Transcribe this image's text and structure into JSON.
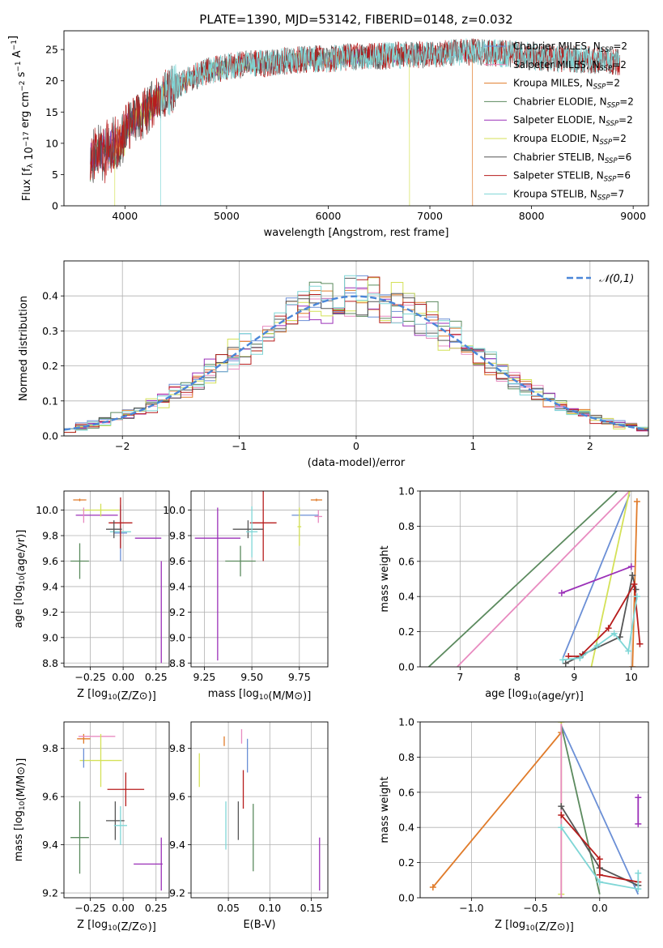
{
  "figure": {
    "title": "PLATE=1390, MJD=53142, FIBERID=0148, z=0.032"
  },
  "colors": {
    "Chabrier MILES": "#6b8fd6",
    "Salpeter MILES": "#e88bc0",
    "Kroupa MILES": "#e07b2a",
    "Chabrier ELODIE": "#5b8a5e",
    "Salpeter ELODIE": "#9b30b8",
    "Kroupa ELODIE": "#d4e157",
    "Chabrier STELIB": "#555555",
    "Salpeter STELIB": "#b71c1c",
    "Kroupa STELIB": "#7fd6d6"
  },
  "chart_data": [
    {
      "id": "spectrum",
      "type": "line",
      "xlabel": "wavelength [Angstrom, rest frame]",
      "ylabel": "Flux [f_λ 10^-17 erg cm^-2 s^-1 A^-1]",
      "xlim": [
        3400,
        9150
      ],
      "ylim": [
        0,
        28
      ],
      "xticks": [
        4000,
        5000,
        6000,
        7000,
        8000,
        9000
      ],
      "yticks": [
        0,
        5,
        10,
        15,
        20,
        25
      ],
      "legend": [
        {
          "name": "Chabrier MILES",
          "sub": "SSP",
          "n": "=2"
        },
        {
          "name": "Salpeter MILES",
          "sub": "SSP",
          "n": "=2"
        },
        {
          "name": "Kroupa MILES",
          "sub": "SSP",
          "n": "=2"
        },
        {
          "name": "Chabrier ELODIE",
          "sub": "SSP",
          "n": "=2"
        },
        {
          "name": "Salpeter ELODIE",
          "sub": "SSP",
          "n": "=2"
        },
        {
          "name": "Kroupa ELODIE",
          "sub": "SSP",
          "n": "=2"
        },
        {
          "name": "Chabrier STELIB",
          "sub": "SSP",
          "n": "=6"
        },
        {
          "name": "Salpeter STELIB",
          "sub": "SSP",
          "n": "=6"
        },
        {
          "name": "Kroupa STELIB",
          "sub": "SSP",
          "n": "=7"
        }
      ],
      "legend_prefix": " N",
      "continuum": [
        [
          3660,
          9
        ],
        [
          3750,
          10
        ],
        [
          3900,
          11
        ],
        [
          4000,
          12.5
        ],
        [
          4200,
          15
        ],
        [
          4400,
          18
        ],
        [
          4600,
          20
        ],
        [
          4800,
          21.5
        ],
        [
          5000,
          22.2
        ],
        [
          5200,
          22.7
        ],
        [
          5400,
          22.8
        ],
        [
          5600,
          23.2
        ],
        [
          5800,
          23.5
        ],
        [
          6000,
          23.5
        ],
        [
          6200,
          23.8
        ],
        [
          6400,
          23.9
        ],
        [
          6600,
          24
        ],
        [
          6800,
          24.1
        ],
        [
          7000,
          24.2
        ],
        [
          7200,
          24.5
        ],
        [
          7400,
          24.6
        ],
        [
          7600,
          24.4
        ],
        [
          7800,
          24.3
        ],
        [
          8000,
          24
        ],
        [
          8200,
          23.5
        ],
        [
          8400,
          23.5
        ],
        [
          8600,
          23.3
        ],
        [
          8800,
          23.2
        ],
        [
          8870,
          23
        ]
      ],
      "series_ranges": {
        "Chabrier MILES": [
          3660,
          7400
        ],
        "Salpeter MILES": [
          3660,
          7400
        ],
        "Kroupa MILES": [
          3660,
          7420
        ],
        "Chabrier ELODIE": [
          3660,
          6800
        ],
        "Salpeter ELODIE": [
          3660,
          6800
        ],
        "Kroupa ELODIE": [
          3900,
          6800
        ],
        "Chabrier STELIB": [
          3660,
          8870
        ],
        "Salpeter STELIB": [
          3660,
          8870
        ],
        "Kroupa STELIB": [
          4350,
          8870
        ]
      }
    },
    {
      "id": "residuals",
      "type": "line",
      "xlabel": "(data-model)/error",
      "ylabel": "Normed distribution",
      "xlim": [
        -2.5,
        2.5
      ],
      "ylim": [
        0,
        0.5
      ],
      "xticks": [
        -2,
        -1,
        0,
        1,
        2
      ],
      "yticks": [
        0.0,
        0.1,
        0.2,
        0.3,
        0.4
      ],
      "grid": true,
      "legend": "𝒩(0,1)",
      "gaussian": {
        "mean": 0,
        "sigma": 1,
        "color": "#4a86d8"
      },
      "bins": 50
    },
    {
      "id": "age_vs_Z",
      "type": "scatter",
      "xlabel": "Z [log10(Z/Z⊙)]",
      "ylabel": "age  [log10(age/yr)]",
      "xlim": [
        -0.45,
        0.35
      ],
      "ylim": [
        8.77,
        10.15
      ],
      "xticks": [
        -0.25,
        0.0,
        0.25
      ],
      "yticks": [
        8.8,
        9.0,
        9.2,
        9.4,
        9.6,
        9.8,
        10.0
      ],
      "grid": true,
      "points": [
        {
          "s": "Kroupa MILES",
          "x": -0.33,
          "y": 10.08,
          "ex": 0.05,
          "ey": 0.01
        },
        {
          "s": "Salpeter ELODIE",
          "x": -0.2,
          "y": 9.96,
          "ex": 0.16,
          "ey": 0.0
        },
        {
          "s": "Kroupa ELODIE",
          "x": -0.17,
          "y": 10.0,
          "ex": 0.14,
          "ey": 0.05
        },
        {
          "s": "Kroupa STELIB",
          "x": -0.02,
          "y": 9.83,
          "ex": 0.08,
          "ey": 0.05
        },
        {
          "s": "Chabrier MILES",
          "x": -0.02,
          "y": 9.82,
          "ex": 0.05,
          "ey": 0.22
        },
        {
          "s": "Salpeter STELIB",
          "x": -0.02,
          "y": 9.9,
          "ex": 0.09,
          "ey": 0.2
        },
        {
          "s": "Chabrier STELIB",
          "x": -0.07,
          "y": 9.85,
          "ex": 0.06,
          "ey": 0.07
        },
        {
          "s": "Chabrier ELODIE",
          "x": -0.33,
          "y": 9.6,
          "ex": 0.07,
          "ey": 0.14
        },
        {
          "s": "Salpeter ELODIE",
          "x": 0.29,
          "y": 9.2,
          "ex": 0.0,
          "ey": 0.4
        },
        {
          "s": "Salpeter ELODIE",
          "x": 0.19,
          "y": 9.78,
          "ex": 0.1,
          "ey": 0.0
        },
        {
          "s": "Salpeter MILES",
          "x": -0.3,
          "y": 9.96,
          "ex": 0.0,
          "ey": 0.06
        }
      ]
    },
    {
      "id": "age_vs_mass",
      "type": "scatter",
      "xlabel": "mass [log10(M/M⊙)]",
      "ylabel": "",
      "xlim": [
        9.18,
        9.9
      ],
      "ylim": [
        8.77,
        10.15
      ],
      "xticks": [
        9.25,
        9.5,
        9.75
      ],
      "yticks": [
        8.8,
        9.0,
        9.2,
        9.4,
        9.6,
        9.8,
        10.0
      ],
      "grid": true,
      "points": [
        {
          "s": "Kroupa MILES",
          "x": 9.84,
          "y": 10.08,
          "ex": 0.03,
          "ey": 0.01
        },
        {
          "s": "Salpeter MILES",
          "x": 9.85,
          "y": 9.95,
          "ex": 0.02,
          "ey": 0.05
        },
        {
          "s": "Chabrier MILES",
          "x": 9.78,
          "y": 9.96,
          "ex": 0.07,
          "ey": 0.0
        },
        {
          "s": "Kroupa ELODIE",
          "x": 9.75,
          "y": 9.87,
          "ex": 0.01,
          "ey": 0.15
        },
        {
          "s": "Salpeter STELIB",
          "x": 9.56,
          "y": 9.9,
          "ex": 0.07,
          "ey": 0.3
        },
        {
          "s": "Chabrier STELIB",
          "x": 9.48,
          "y": 9.85,
          "ex": 0.08,
          "ey": 0.07
        },
        {
          "s": "Kroupa STELIB",
          "x": 9.5,
          "y": 9.83,
          "ex": 0.03,
          "ey": 0.2
        },
        {
          "s": "Chabrier ELODIE",
          "x": 9.44,
          "y": 9.6,
          "ex": 0.08,
          "ey": 0.12
        },
        {
          "s": "Salpeter ELODIE",
          "x": 9.32,
          "y": 9.78,
          "ex": 0.12,
          "ey": 0.0
        },
        {
          "s": "Salpeter ELODIE",
          "x": 9.32,
          "y": 9.42,
          "ex": 0.0,
          "ey": 0.6
        }
      ]
    },
    {
      "id": "weight_vs_age",
      "type": "line",
      "xlabel": "age  [log10(age/yr)]",
      "ylabel": "mass weight",
      "xlim": [
        6.3,
        10.3
      ],
      "ylim": [
        0,
        1
      ],
      "xticks": [
        7,
        8,
        9,
        10
      ],
      "yticks": [
        0.0,
        0.2,
        0.4,
        0.6,
        0.8,
        1.0
      ],
      "grid": true,
      "series": [
        {
          "name": "Chabrier ELODIE",
          "points": [
            [
              6.45,
              0.0
            ],
            [
              9.75,
              1.0
            ]
          ],
          "marker": false
        },
        {
          "name": "Salpeter MILES",
          "points": [
            [
              6.95,
              0.0
            ],
            [
              9.97,
              1.0
            ]
          ],
          "marker": false
        },
        {
          "name": "Chabrier MILES",
          "points": [
            [
              8.8,
              0.05
            ],
            [
              9.97,
              0.98
            ]
          ],
          "marker": false
        },
        {
          "name": "Kroupa ELODIE",
          "points": [
            [
              9.3,
              0.0
            ],
            [
              9.97,
              1.0
            ]
          ],
          "marker": false
        },
        {
          "name": "Kroupa MILES",
          "points": [
            [
              10.02,
              0.0
            ],
            [
              10.1,
              0.94
            ]
          ],
          "marker": true
        },
        {
          "name": "Salpeter ELODIE",
          "points": [
            [
              8.78,
              0.42
            ],
            [
              10.0,
              0.57
            ]
          ],
          "marker": true
        },
        {
          "name": "Chabrier STELIB",
          "points": [
            [
              8.85,
              0.02
            ],
            [
              9.15,
              0.07
            ],
            [
              9.8,
              0.17
            ],
            [
              10.02,
              0.52
            ],
            [
              10.08,
              0.44
            ]
          ],
          "marker": true
        },
        {
          "name": "Salpeter STELIB",
          "points": [
            [
              8.9,
              0.06
            ],
            [
              9.1,
              0.06
            ],
            [
              9.6,
              0.22
            ],
            [
              10.05,
              0.47
            ],
            [
              10.15,
              0.13
            ]
          ],
          "marker": true
        },
        {
          "name": "Kroupa STELIB",
          "points": [
            [
              8.8,
              0.04
            ],
            [
              9.1,
              0.05
            ],
            [
              9.4,
              0.12
            ],
            [
              9.7,
              0.19
            ],
            [
              9.95,
              0.09
            ],
            [
              10.1,
              0.4
            ]
          ],
          "marker": true
        }
      ]
    },
    {
      "id": "mass_vs_Z",
      "type": "scatter",
      "xlabel": "Z [log10(Z/Z⊙)]",
      "ylabel": "mass [log10(M/M⊙)]",
      "xlim": [
        -0.45,
        0.35
      ],
      "ylim": [
        9.18,
        9.91
      ],
      "xticks": [
        -0.25,
        0.0,
        0.25
      ],
      "yticks": [
        9.2,
        9.4,
        9.6,
        9.8
      ],
      "grid": true,
      "points": [
        {
          "s": "Kroupa MILES",
          "x": -0.3,
          "y": 9.84,
          "ex": 0.05,
          "ey": 0.02
        },
        {
          "s": "Salpeter MILES",
          "x": -0.2,
          "y": 9.85,
          "ex": 0.14,
          "ey": 0.0
        },
        {
          "s": "Kroupa ELODIE",
          "x": -0.17,
          "y": 9.75,
          "ex": 0.16,
          "ey": 0.11
        },
        {
          "s": "Salpeter STELIB",
          "x": 0.02,
          "y": 9.63,
          "ex": 0.14,
          "ey": 0.07
        },
        {
          "s": "Chabrier STELIB",
          "x": -0.06,
          "y": 9.5,
          "ex": 0.07,
          "ey": 0.08
        },
        {
          "s": "Kroupa STELIB",
          "x": -0.02,
          "y": 9.48,
          "ex": 0.05,
          "ey": 0.08
        },
        {
          "s": "Chabrier ELODIE",
          "x": -0.33,
          "y": 9.43,
          "ex": 0.07,
          "ey": 0.15
        },
        {
          "s": "Salpeter ELODIE",
          "x": 0.19,
          "y": 9.32,
          "ex": 0.11,
          "ey": 0.0
        },
        {
          "s": "Salpeter ELODIE",
          "x": 0.29,
          "y": 9.32,
          "ex": 0.0,
          "ey": 0.11
        },
        {
          "s": "Chabrier MILES",
          "x": -0.3,
          "y": 9.76,
          "ex": 0.0,
          "ey": 0.04
        }
      ]
    },
    {
      "id": "mass_vs_EBV",
      "type": "scatter",
      "xlabel": "E(B-V)",
      "ylabel": "",
      "xlim": [
        0.005,
        0.17
      ],
      "ylim": [
        9.18,
        9.91
      ],
      "xticks": [
        0.05,
        0.1,
        0.15
      ],
      "tick_labels": [
        "0.05",
        "0.10",
        "0.15"
      ],
      "yticks": [
        9.2,
        9.4,
        9.6,
        9.8
      ],
      "grid": true,
      "points": [
        {
          "s": "Kroupa ELODIE",
          "x": 0.015,
          "y": 9.71,
          "ex": 0.0,
          "ey": 0.07
        },
        {
          "s": "Kroupa MILES",
          "x": 0.045,
          "y": 9.83,
          "ex": 0.0,
          "ey": 0.02
        },
        {
          "s": "Salpeter MILES",
          "x": 0.066,
          "y": 9.85,
          "ex": 0.0,
          "ey": 0.03
        },
        {
          "s": "Chabrier MILES",
          "x": 0.073,
          "y": 9.77,
          "ex": 0.0,
          "ey": 0.07
        },
        {
          "s": "Salpeter STELIB",
          "x": 0.068,
          "y": 9.63,
          "ex": 0.0,
          "ey": 0.08
        },
        {
          "s": "Chabrier STELIB",
          "x": 0.062,
          "y": 9.5,
          "ex": 0.0,
          "ey": 0.08
        },
        {
          "s": "Kroupa STELIB",
          "x": 0.047,
          "y": 9.48,
          "ex": 0.0,
          "ey": 0.1
        },
        {
          "s": "Chabrier ELODIE",
          "x": 0.08,
          "y": 9.43,
          "ex": 0.0,
          "ey": 0.14
        },
        {
          "s": "Salpeter ELODIE",
          "x": 0.16,
          "y": 9.32,
          "ex": 0.0,
          "ey": 0.11
        }
      ]
    },
    {
      "id": "weight_vs_Z",
      "type": "line",
      "xlabel": "Z [log10(Z/Z⊙)]",
      "ylabel": "mass weight",
      "xlim": [
        -1.4,
        0.38
      ],
      "ylim": [
        0,
        1
      ],
      "xticks": [
        -1.0,
        -0.5,
        0.0
      ],
      "yticks": [
        0.0,
        0.2,
        0.4,
        0.6,
        0.8,
        1.0
      ],
      "grid": true,
      "series": [
        {
          "name": "Kroupa MILES",
          "points": [
            [
              -1.3,
              0.06
            ],
            [
              -0.3,
              0.94
            ]
          ],
          "marker": true
        },
        {
          "name": "Chabrier MILES",
          "points": [
            [
              -0.3,
              0.98
            ],
            [
              0.3,
              0.02
            ]
          ],
          "marker": false
        },
        {
          "name": "Chabrier ELODIE",
          "points": [
            [
              -0.3,
              0.98
            ],
            [
              0.0,
              0.02
            ]
          ],
          "marker": false
        },
        {
          "name": "Kroupa ELODIE",
          "points": [
            [
              -0.3,
              1.0
            ],
            [
              -0.3,
              0.02
            ]
          ],
          "marker": true
        },
        {
          "name": "Salpeter MILES",
          "points": [
            [
              -0.3,
              0.99
            ],
            [
              -0.3,
              0.0
            ]
          ],
          "marker": false
        },
        {
          "name": "Salpeter ELODIE",
          "points": [
            [
              0.3,
              0.57
            ],
            [
              0.3,
              0.42
            ]
          ],
          "marker": true
        },
        {
          "name": "Chabrier STELIB",
          "points": [
            [
              -0.3,
              0.52
            ],
            [
              0.0,
              0.17
            ],
            [
              0.3,
              0.07
            ]
          ],
          "marker": true
        },
        {
          "name": "Salpeter STELIB",
          "points": [
            [
              -0.3,
              0.47
            ],
            [
              0.0,
              0.22
            ],
            [
              0.0,
              0.13
            ],
            [
              0.3,
              0.09
            ]
          ],
          "marker": true
        },
        {
          "name": "Kroupa STELIB",
          "points": [
            [
              -0.3,
              0.4
            ],
            [
              0.0,
              0.09
            ],
            [
              0.3,
              0.05
            ],
            [
              0.3,
              0.14
            ]
          ],
          "marker": true
        }
      ]
    }
  ]
}
